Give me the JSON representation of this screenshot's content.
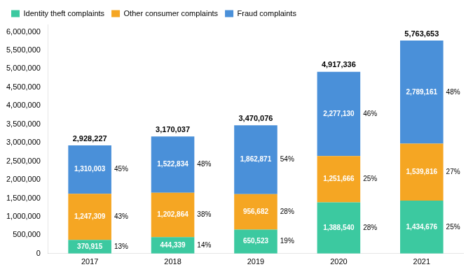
{
  "chart_data": {
    "type": "bar",
    "stacked": true,
    "categories": [
      "2017",
      "2018",
      "2019",
      "2020",
      "2021"
    ],
    "series": [
      {
        "name": "Identity theft complaints",
        "color": "#3cc9a0",
        "values": [
          370915,
          444339,
          650523,
          1388540,
          1434676
        ],
        "value_labels": [
          "370,915",
          "444,339",
          "650,523",
          "1,388,540",
          "1,434,676"
        ],
        "shares": [
          13,
          14,
          19,
          28,
          25
        ],
        "share_labels": [
          "13%",
          "14%",
          "19%",
          "28%",
          "25%"
        ]
      },
      {
        "name": "Other consumer complaints",
        "color": "#f5a623",
        "values": [
          1247309,
          1202864,
          956682,
          1251666,
          1539816
        ],
        "value_labels": [
          "1,247,309",
          "1,202,864",
          "956,682",
          "1,251,666",
          "1,539,816"
        ],
        "shares": [
          43,
          38,
          28,
          25,
          27
        ],
        "share_labels": [
          "43%",
          "38%",
          "28%",
          "25%",
          "27%"
        ]
      },
      {
        "name": "Fraud complaints",
        "color": "#4a90d9",
        "values": [
          1310003,
          1522834,
          1862871,
          2277130,
          2789161
        ],
        "value_labels": [
          "1,310,003",
          "1,522,834",
          "1,862,871",
          "2,277,130",
          "2,789,161"
        ],
        "shares": [
          45,
          48,
          54,
          46,
          48
        ],
        "share_labels": [
          "45%",
          "48%",
          "54%",
          "46%",
          "48%"
        ]
      }
    ],
    "totals": [
      2928227,
      3170037,
      3470076,
      4917336,
      5763653
    ],
    "total_labels": [
      "2,928,227",
      "3,170,037",
      "3,470,076",
      "4,917,336",
      "5,763,653"
    ],
    "data_labels": true,
    "ylim": [
      0,
      6200000
    ],
    "yticks": [
      0,
      {
        "value": 500000,
        "label": "500,000"
      },
      {
        "value": 1000000,
        "label": "1,000,000"
      },
      {
        "value": 1500000,
        "label": "1,500,000"
      },
      {
        "value": 2000000,
        "label": "2,000,000"
      },
      {
        "value": 2500000,
        "label": "2,500,000"
      },
      {
        "value": 3000000,
        "label": "3,000,000"
      },
      {
        "value": 3500000,
        "label": "3,500,000"
      },
      {
        "value": 4000000,
        "label": "4,000,000"
      },
      {
        "value": 4500000,
        "label": "4,500,000"
      },
      {
        "value": 5000000,
        "label": "5,000,000"
      },
      {
        "value": 5500000,
        "label": "5,500,000"
      },
      {
        "value": 6000000,
        "label": "6,000,000"
      }
    ],
    "grid": false,
    "legend": "top"
  }
}
